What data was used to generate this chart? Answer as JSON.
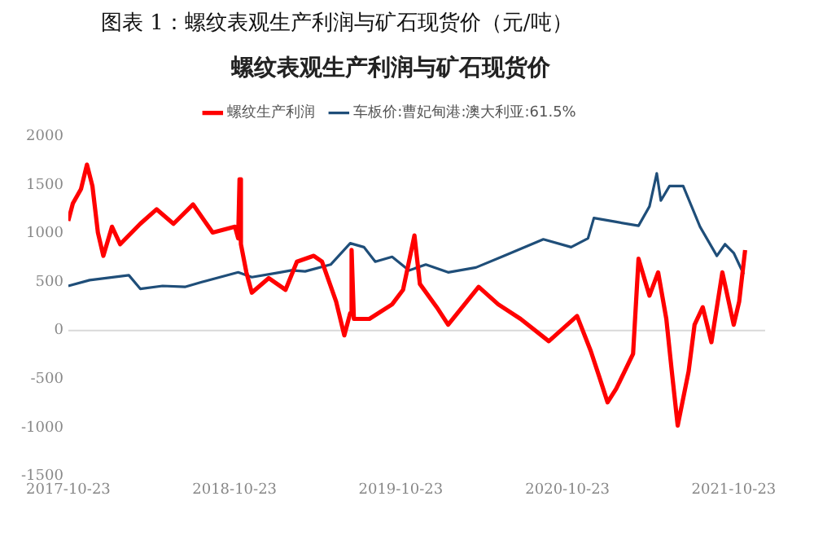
{
  "chart_data": {
    "type": "line",
    "title": "图表 1：螺纹表观生产利润与矿石现货价（元/吨）",
    "subtitle": "螺纹表观生产利润与矿石现货价",
    "series": [
      {
        "name": "螺纹生产利润",
        "color": "#ff0000",
        "x": [
          "2017-10-23",
          "2017-11-02",
          "2017-11-20",
          "2017-12-03",
          "2017-12-15",
          "2017-12-27",
          "2018-01-08",
          "2018-01-27",
          "2018-02-14",
          "2018-03-30",
          "2018-05-05",
          "2018-06-11",
          "2018-07-24",
          "2018-09-05",
          "2018-10-24",
          "2018-10-31",
          "2018-11-03",
          "2018-11-06",
          "2018-11-18",
          "2018-11-30",
          "2019-01-06",
          "2019-02-12",
          "2019-03-09",
          "2019-04-15",
          "2019-05-03",
          "2019-06-03",
          "2019-06-21",
          "2019-07-04",
          "2019-07-07",
          "2019-07-12",
          "2019-08-15",
          "2019-10-04",
          "2019-10-28",
          "2019-11-22",
          "2019-12-04",
          "2020-01-10",
          "2020-02-04",
          "2020-04-11",
          "2020-05-24",
          "2020-07-12",
          "2020-09-12",
          "2020-11-13",
          "2020-12-13",
          "2021-01-01",
          "2021-01-19",
          "2021-02-07",
          "2021-03-16",
          "2021-03-28",
          "2021-04-21",
          "2021-05-10",
          "2021-05-28",
          "2021-06-09",
          "2021-06-22",
          "2021-07-16",
          "2021-07-29",
          "2021-08-16",
          "2021-09-04",
          "2021-09-28",
          "2021-10-23",
          "2021-11-04",
          "2021-11-17"
        ],
        "values": [
          1130,
          1310,
          1460,
          1710,
          1490,
          1010,
          770,
          1070,
          890,
          1100,
          1250,
          1100,
          1300,
          1010,
          1070,
          950,
          1560,
          890,
          600,
          390,
          540,
          420,
          710,
          770,
          710,
          300,
          -50,
          180,
          830,
          120,
          120,
          270,
          420,
          980,
          480,
          240,
          60,
          450,
          270,
          120,
          -110,
          150,
          -210,
          -480,
          -740,
          -600,
          -240,
          740,
          360,
          600,
          120,
          -420,
          -980,
          -420,
          60,
          240,
          -120,
          600,
          60,
          300,
          830
        ]
      },
      {
        "name": "车板价:曹妃甸港:澳大利亚:61.5%",
        "color": "#1f4e79",
        "x": [
          "2017-10-23",
          "2017-12-09",
          "2018-03-05",
          "2018-03-30",
          "2018-05-18",
          "2018-07-06",
          "2018-08-12",
          "2018-10-31",
          "2018-11-30",
          "2019-01-31",
          "2019-02-25",
          "2019-03-27",
          "2019-05-22",
          "2019-07-04",
          "2019-08-03",
          "2019-08-28",
          "2019-10-04",
          "2019-11-10",
          "2019-12-17",
          "2020-02-04",
          "2020-04-05",
          "2020-06-06",
          "2020-08-31",
          "2020-10-31",
          "2020-12-07",
          "2020-12-20",
          "2021-02-07",
          "2021-03-28",
          "2021-04-21",
          "2021-05-07",
          "2021-05-16",
          "2021-06-04",
          "2021-07-04",
          "2021-08-10",
          "2021-09-16",
          "2021-10-04",
          "2021-10-23",
          "2021-11-14"
        ],
        "values": [
          460,
          520,
          570,
          430,
          460,
          450,
          500,
          600,
          550,
          600,
          620,
          610,
          680,
          900,
          860,
          710,
          760,
          620,
          680,
          600,
          650,
          770,
          940,
          860,
          950,
          1160,
          1120,
          1080,
          1280,
          1620,
          1340,
          1490,
          1490,
          1070,
          770,
          890,
          800,
          580
        ]
      }
    ],
    "xlim": [
      "2017-10-23",
      "2021-12-31"
    ],
    "xticks": [
      "2017-10-23",
      "2018-10-23",
      "2019-10-23",
      "2020-10-23",
      "2021-10-23"
    ],
    "ylim": [
      -1500,
      2000
    ],
    "yticks": [
      -1500,
      -1000,
      -500,
      0,
      500,
      1000,
      1500,
      2000
    ],
    "ref_lines": [
      {
        "axis": "y",
        "value": 0,
        "color": "#d9d9d9"
      }
    ],
    "grid": false,
    "legend": "top",
    "marker": "none",
    "line_style": "solid"
  }
}
